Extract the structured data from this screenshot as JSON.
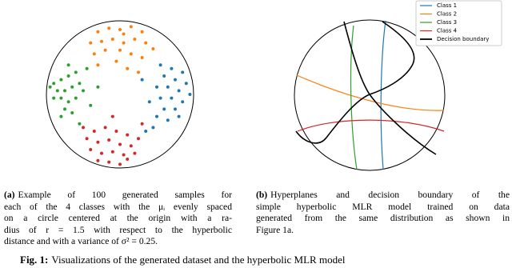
{
  "panels": [
    {
      "label": "(a)",
      "caption": [
        "Example of 100 generated samples for",
        "each of the 4 classes with the μᵢ evenly spaced",
        "on a circle centered at the origin with a ra-",
        "dius of r = 1.5 with respect to the hyperbolic",
        "distance and with a variance of σ² = 0.25."
      ],
      "classes": [
        {
          "color": "#1f77b4",
          "x": [
            0.55,
            0.7,
            0.85,
            0.6,
            0.75,
            0.9,
            0.5,
            0.65,
            0.8,
            0.95,
            0.55,
            0.7,
            0.85,
            0.6,
            0.75,
            0.5,
            0.65,
            0.4,
            0.3,
            0.45,
            0.8,
            0.35
          ],
          "y": [
            0.4,
            0.35,
            0.3,
            0.25,
            0.2,
            0.15,
            0.1,
            0.1,
            0.05,
            0.0,
            -0.05,
            -0.05,
            -0.1,
            -0.2,
            -0.2,
            -0.3,
            -0.35,
            -0.1,
            0.2,
            -0.45,
            -0.3,
            -0.5
          ]
        },
        {
          "color": "#ff7f0e",
          "x": [
            -0.3,
            -0.15,
            0.0,
            0.15,
            0.3,
            -0.4,
            -0.25,
            -0.1,
            0.05,
            0.2,
            0.35,
            0.45,
            -0.35,
            -0.2,
            0.0,
            0.15,
            0.3,
            -0.05,
            0.1,
            -0.3,
            0.25,
            0.05
          ],
          "y": [
            0.85,
            0.9,
            0.88,
            0.92,
            0.85,
            0.7,
            0.72,
            0.75,
            0.7,
            0.75,
            0.7,
            0.62,
            0.55,
            0.6,
            0.6,
            0.55,
            0.5,
            0.45,
            0.35,
            0.4,
            0.3,
            0.82
          ]
        },
        {
          "color": "#2ca02c",
          "x": [
            -0.9,
            -0.8,
            -0.7,
            -0.6,
            -0.85,
            -0.75,
            -0.65,
            -0.55,
            -0.9,
            -0.8,
            -0.7,
            -0.6,
            -0.5,
            -0.75,
            -0.65,
            -0.8,
            -0.45,
            -0.4,
            -0.55,
            -0.3,
            -0.7,
            -0.95
          ],
          "y": [
            0.15,
            0.2,
            0.25,
            0.3,
            0.05,
            0.05,
            0.1,
            0.15,
            -0.05,
            -0.05,
            -0.1,
            -0.05,
            0.05,
            -0.2,
            -0.25,
            -0.3,
            0.35,
            -0.15,
            -0.4,
            0.1,
            0.4,
            0.1
          ]
        },
        {
          "color": "#d62728",
          "x": [
            -0.35,
            -0.2,
            -0.05,
            0.1,
            -0.45,
            -0.3,
            -0.15,
            0.0,
            0.15,
            0.25,
            -0.4,
            -0.25,
            -0.1,
            0.05,
            0.2,
            -0.3,
            -0.15,
            0.0,
            -0.5,
            0.3,
            -0.1,
            0.1
          ],
          "y": [
            -0.5,
            -0.45,
            -0.5,
            -0.55,
            -0.6,
            -0.65,
            -0.62,
            -0.68,
            -0.7,
            -0.6,
            -0.75,
            -0.8,
            -0.78,
            -0.82,
            -0.8,
            -0.9,
            -0.92,
            -0.95,
            -0.45,
            -0.4,
            -0.3,
            -0.88
          ]
        }
      ]
    },
    {
      "label": "(b)",
      "caption": [
        "Hyperplanes and decision boundary of the",
        "simple hyperbolic MLR model trained on data",
        "generated from the same distribution as shown in",
        "Figure 1a."
      ],
      "legend": [
        {
          "name": "Class 1",
          "color": "#1f77b4"
        },
        {
          "name": "Class 2",
          "color": "#ff7f0e"
        },
        {
          "name": "Class 3",
          "color": "#2ca02c"
        },
        {
          "name": "Class 4",
          "color": "#d62728"
        },
        {
          "name": "Decision boundary",
          "color": "#000000"
        }
      ]
    }
  ],
  "figure_caption": {
    "label": "Fig. 1:",
    "text": "Visualizations of the generated dataset and the hyperbolic MLR model"
  }
}
